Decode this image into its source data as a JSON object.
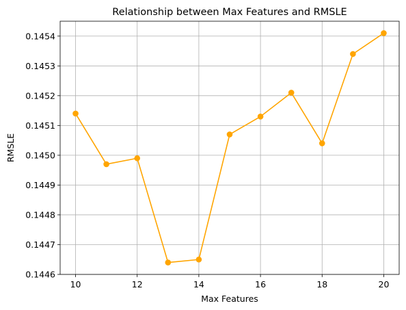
{
  "chart_data": {
    "type": "line",
    "title": "Relationship between Max Features and RMSLE",
    "xlabel": "Max Features",
    "ylabel": "RMSLE",
    "xlim": [
      9.5,
      20.5
    ],
    "ylim": [
      0.1446,
      0.14545
    ],
    "xticks": [
      10,
      12,
      14,
      16,
      18,
      20
    ],
    "xtick_labels": [
      "10",
      "12",
      "14",
      "16",
      "18",
      "20"
    ],
    "yticks": [
      0.1446,
      0.1447,
      0.1448,
      0.1449,
      0.145,
      0.1451,
      0.1452,
      0.1453,
      0.1454
    ],
    "ytick_labels": [
      "0.1446",
      "0.1447",
      "0.1448",
      "0.1449",
      "0.1450",
      "0.1451",
      "0.1452",
      "0.1453",
      "0.1454"
    ],
    "grid": true,
    "color": "#ffa500",
    "marker": "circle",
    "series": [
      {
        "x": [
          10,
          11,
          12,
          13,
          14,
          15,
          16,
          17,
          18,
          19,
          20
        ],
        "y": [
          0.14514,
          0.14497,
          0.14499,
          0.14464,
          0.14465,
          0.14507,
          0.14513,
          0.14521,
          0.14504,
          0.14534,
          0.14541
        ]
      }
    ]
  }
}
